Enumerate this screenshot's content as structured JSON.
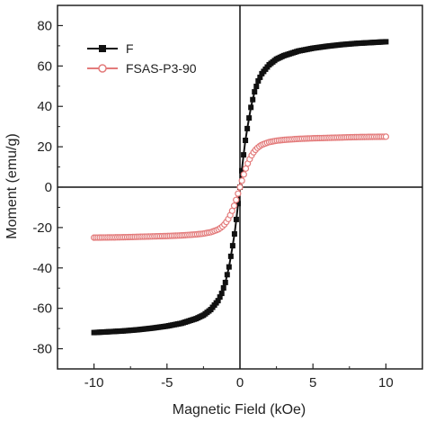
{
  "chart_data": {
    "type": "line",
    "title": "",
    "xlabel": "Magnetic Field (kOe)",
    "ylabel": "Moment (emu/g)",
    "xlim": [
      -12.5,
      12.5
    ],
    "ylim": [
      -90,
      90
    ],
    "xticks": [
      -10,
      -5,
      0,
      5,
      10
    ],
    "yticks": [
      -80,
      -60,
      -40,
      -20,
      0,
      20,
      40,
      60,
      80
    ],
    "xtick_labels": [
      "-10",
      "-5",
      "0",
      "5",
      "10"
    ],
    "ytick_labels": [
      "-80",
      "-60",
      "-40",
      "-20",
      "0",
      "20",
      "40",
      "60",
      "80"
    ],
    "grid": false,
    "zero_lines": true,
    "legend_position": "top-left",
    "series": [
      {
        "name": "F",
        "color": "#111111",
        "marker": "filled-square",
        "x": [
          -10,
          -9,
          -8,
          -7,
          -6,
          -5,
          -4,
          -3,
          -2.5,
          -2,
          -1.5,
          -1.25,
          -1,
          -0.75,
          -0.5,
          -0.35,
          -0.2,
          -0.1,
          0,
          0.1,
          0.2,
          0.35,
          0.5,
          0.75,
          1,
          1.25,
          1.5,
          2,
          2.5,
          3,
          4,
          5,
          6,
          7,
          8,
          9,
          10
        ],
        "y": [
          -72,
          -71.6,
          -71.2,
          -70.6,
          -69.8,
          -68.8,
          -67.4,
          -65.1,
          -63.4,
          -60.6,
          -56.2,
          -52.6,
          -47.2,
          -39.5,
          -29,
          -22,
          -13,
          -6.5,
          0,
          6.5,
          13,
          22,
          29,
          39.5,
          47.2,
          52.6,
          56.2,
          60.6,
          63.4,
          65.1,
          67.4,
          68.8,
          69.8,
          70.6,
          71.2,
          71.6,
          72
        ]
      },
      {
        "name": "FSAS-P3-90",
        "color": "#e37b7b",
        "marker": "open-circle",
        "x": [
          -10,
          -9,
          -8,
          -7,
          -6,
          -5,
          -4,
          -3,
          -2.5,
          -2,
          -1.5,
          -1.25,
          -1,
          -0.75,
          -0.5,
          -0.35,
          -0.2,
          -0.1,
          0,
          0.1,
          0.2,
          0.35,
          0.5,
          0.75,
          1,
          1.25,
          1.5,
          2,
          2.5,
          3,
          4,
          5,
          6,
          7,
          8,
          9,
          10
        ],
        "y": [
          -25,
          -24.9,
          -24.8,
          -24.6,
          -24.4,
          -24.2,
          -23.9,
          -23.4,
          -23,
          -22.3,
          -21,
          -19.8,
          -18,
          -15.2,
          -11.2,
          -8.2,
          -4.8,
          -2.4,
          0,
          2.4,
          4.8,
          8.2,
          11.2,
          15.2,
          18,
          19.8,
          21,
          22.3,
          23,
          23.4,
          23.9,
          24.2,
          24.4,
          24.6,
          24.8,
          24.9,
          25
        ]
      }
    ]
  }
}
